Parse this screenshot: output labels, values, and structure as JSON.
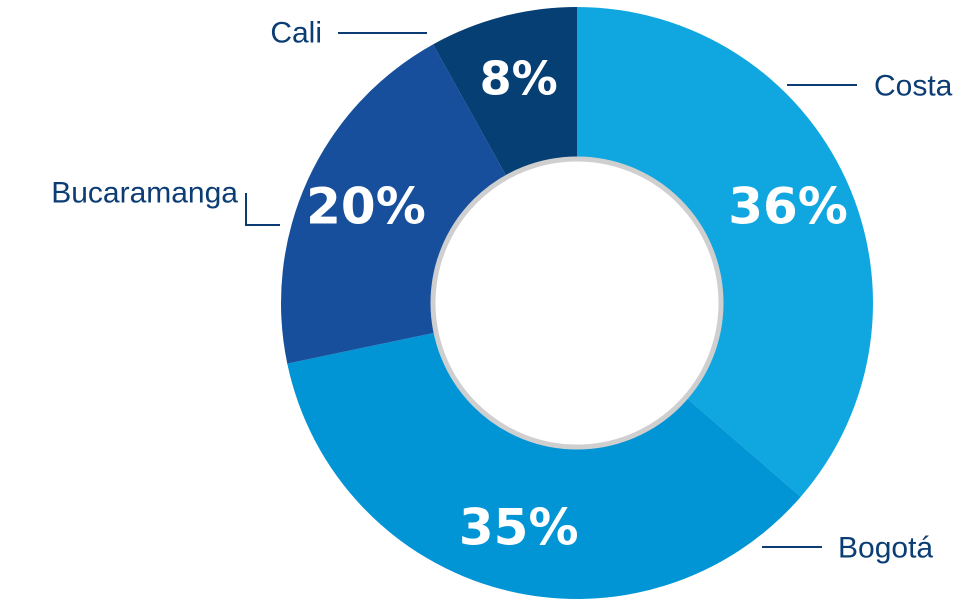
{
  "chart_data": {
    "type": "pie",
    "title": "",
    "categories": [
      "Costa",
      "Bogotá",
      "Bucaramanga",
      "Cali"
    ],
    "values": [
      36,
      35,
      20,
      8
    ],
    "labels": [
      "36%",
      "35%",
      "20%",
      "8%"
    ],
    "colors": [
      "#10a7e0",
      "#0295d6",
      "#174f9c",
      "#063f74"
    ],
    "legend": "none"
  },
  "style": {
    "hole_fill": "#ffffff",
    "hole_stroke": "#cfcfcf",
    "label_color": "#0b3d74"
  }
}
